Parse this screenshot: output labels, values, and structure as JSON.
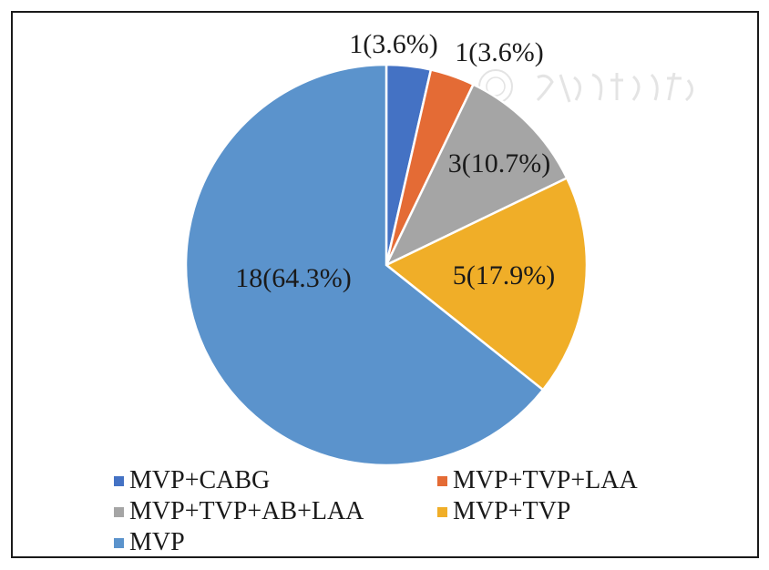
{
  "chart_data": {
    "type": "pie",
    "slices": [
      {
        "label": "MVP+CABG",
        "value": 1,
        "percent": 3.6,
        "data_label": "1(3.6%)",
        "color": "#4472c4"
      },
      {
        "label": "MVP+TVP+LAA",
        "value": 1,
        "percent": 3.6,
        "data_label": "1(3.6%)",
        "color": "#e46b35"
      },
      {
        "label": "MVP+TVP+AB+LAA",
        "value": 3,
        "percent": 10.7,
        "data_label": "3(10.7%)",
        "color": "#a5a5a5"
      },
      {
        "label": "MVP+TVP",
        "value": 5,
        "percent": 17.9,
        "data_label": "5(17.9%)",
        "color": "#f0ae28"
      },
      {
        "label": "MVP",
        "value": 18,
        "percent": 64.3,
        "data_label": "18(64.3%)",
        "color": "#5b93cc"
      }
    ],
    "legend_position": "bottom",
    "start_angle": "12 o'clock",
    "direction": "clockwise"
  }
}
